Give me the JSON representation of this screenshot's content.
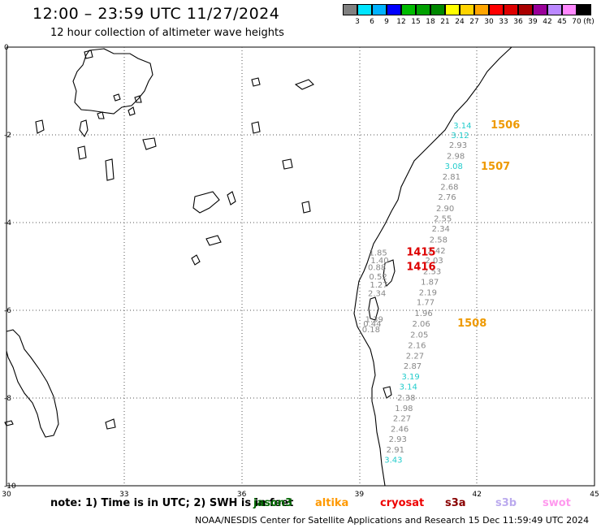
{
  "header": {
    "title": "12:00 – 23:59 UTC 11/27/2024",
    "subtitle": "12 hour collection of altimeter wave heights"
  },
  "color_scale": {
    "unit": "(ft)",
    "colors": [
      "#808080",
      "#00e5ff",
      "#00b2ff",
      "#0000ff",
      "#00bb00",
      "#00a000",
      "#008800",
      "#ffff00",
      "#ffd400",
      "#ffa500",
      "#ff0000",
      "#dd0000",
      "#aa0000",
      "#990099",
      "#bb88ff",
      "#ff88ff",
      "#000000"
    ],
    "labels": [
      "3",
      "6",
      "9",
      "12",
      "15",
      "18",
      "21",
      "24",
      "27",
      "30",
      "33",
      "36",
      "39",
      "42",
      "45",
      "70"
    ]
  },
  "map": {
    "lon_ticks": [
      "30",
      "33",
      "36",
      "39",
      "42",
      "45"
    ],
    "lat_ticks": [
      "0",
      "-2",
      "-4",
      "-6",
      "-8",
      "-10"
    ],
    "lon_range": [
      30,
      45
    ],
    "lat_range": [
      -10,
      0
    ],
    "wave_heights": [
      {
        "lat": -1.85,
        "lon": 41.63,
        "value": "3.14",
        "color": "#22cccc"
      },
      {
        "lat": -2.07,
        "lon": 41.57,
        "value": "3.12",
        "color": "#22cccc"
      },
      {
        "lat": -2.3,
        "lon": 41.52,
        "value": "2.93",
        "color": "#888888"
      },
      {
        "lat": -2.55,
        "lon": 41.46,
        "value": "2.98",
        "color": "#888888"
      },
      {
        "lat": -2.78,
        "lon": 41.41,
        "value": "3.08",
        "color": "#22cccc"
      },
      {
        "lat": -3.02,
        "lon": 41.35,
        "value": "2.81",
        "color": "#888888"
      },
      {
        "lat": -3.25,
        "lon": 41.3,
        "value": "2.68",
        "color": "#888888"
      },
      {
        "lat": -3.48,
        "lon": 41.24,
        "value": "2.76",
        "color": "#888888"
      },
      {
        "lat": -3.74,
        "lon": 41.19,
        "value": "2.90",
        "color": "#888888"
      },
      {
        "lat": -3.97,
        "lon": 41.13,
        "value": "2.55",
        "color": "#888888"
      },
      {
        "lat": -4.2,
        "lon": 41.08,
        "value": "2.34",
        "color": "#888888"
      },
      {
        "lat": -4.45,
        "lon": 41.02,
        "value": "2.58",
        "color": "#888888"
      },
      {
        "lat": -4.7,
        "lon": 40.97,
        "value": "2.42",
        "color": "#888888"
      },
      {
        "lat": -4.93,
        "lon": 40.91,
        "value": "2.03",
        "color": "#888888"
      },
      {
        "lat": -5.18,
        "lon": 40.86,
        "value": "2.53",
        "color": "#888888"
      },
      {
        "lat": -5.42,
        "lon": 40.8,
        "value": "1.87",
        "color": "#888888"
      },
      {
        "lat": -5.66,
        "lon": 40.75,
        "value": "2.19",
        "color": "#888888"
      },
      {
        "lat": -5.88,
        "lon": 40.69,
        "value": "1.77",
        "color": "#888888"
      },
      {
        "lat": -6.13,
        "lon": 40.64,
        "value": "1.96",
        "color": "#888888"
      },
      {
        "lat": -6.37,
        "lon": 40.58,
        "value": "2.06",
        "color": "#888888"
      },
      {
        "lat": -6.62,
        "lon": 40.53,
        "value": "2.05",
        "color": "#888888"
      },
      {
        "lat": -6.86,
        "lon": 40.47,
        "value": "2.16",
        "color": "#888888"
      },
      {
        "lat": -7.1,
        "lon": 40.42,
        "value": "2.27",
        "color": "#888888"
      },
      {
        "lat": -7.33,
        "lon": 40.36,
        "value": "2.87",
        "color": "#888888"
      },
      {
        "lat": -7.57,
        "lon": 40.31,
        "value": "3.19",
        "color": "#22cccc"
      },
      {
        "lat": -7.81,
        "lon": 40.25,
        "value": "3.14",
        "color": "#22cccc"
      },
      {
        "lat": -8.06,
        "lon": 40.2,
        "value": "2.38",
        "color": "#888888"
      },
      {
        "lat": -8.3,
        "lon": 40.14,
        "value": "1.98",
        "color": "#888888"
      },
      {
        "lat": -8.53,
        "lon": 40.09,
        "value": "2.27",
        "color": "#888888"
      },
      {
        "lat": -8.77,
        "lon": 40.03,
        "value": "2.46",
        "color": "#888888"
      },
      {
        "lat": -9.0,
        "lon": 39.98,
        "value": "2.93",
        "color": "#888888"
      },
      {
        "lat": -9.24,
        "lon": 39.92,
        "value": "2.91",
        "color": "#888888"
      },
      {
        "lat": -9.47,
        "lon": 39.87,
        "value": "3.43",
        "color": "#22cccc"
      },
      {
        "lat": -4.75,
        "lon": 39.48,
        "value": "1.85",
        "color": "#888888"
      },
      {
        "lat": -4.93,
        "lon": 39.52,
        "value": "1.40",
        "color": "#888888"
      },
      {
        "lat": -5.08,
        "lon": 39.45,
        "value": "0.88",
        "color": "#888888"
      },
      {
        "lat": -5.3,
        "lon": 39.48,
        "value": "0.52",
        "color": "#888888"
      },
      {
        "lat": -5.48,
        "lon": 39.5,
        "value": "1.27",
        "color": "#888888"
      },
      {
        "lat": -5.68,
        "lon": 39.45,
        "value": "2.34",
        "color": "#888888"
      },
      {
        "lat": -6.27,
        "lon": 39.38,
        "value": "1.39",
        "color": "#888888"
      },
      {
        "lat": -6.37,
        "lon": 39.33,
        "value": "0.44",
        "color": "#888888"
      },
      {
        "lat": -6.5,
        "lon": 39.3,
        "value": "0.18",
        "color": "#888888"
      }
    ],
    "pass_labels": [
      {
        "lat": -1.85,
        "lon": 42.35,
        "text": "1506",
        "color": "#ee9900"
      },
      {
        "lat": -2.8,
        "lon": 42.1,
        "text": "1507",
        "color": "#ee9900"
      },
      {
        "lat": -4.75,
        "lon": 40.2,
        "text": "1415",
        "color": "#dd0000"
      },
      {
        "lat": -5.08,
        "lon": 40.2,
        "text": "1416",
        "color": "#dd0000"
      },
      {
        "lat": -6.37,
        "lon": 41.5,
        "text": "1508",
        "color": "#ee9900"
      }
    ]
  },
  "footer": {
    "note": "note:  1) Time is in UTC; 2) SWH is in feet",
    "legend": [
      {
        "name": "jason3",
        "color": "#006600"
      },
      {
        "name": "altika",
        "color": "#ff9900"
      },
      {
        "name": "cryosat",
        "color": "#ee0000"
      },
      {
        "name": "s3a",
        "color": "#880000"
      },
      {
        "name": "s3b",
        "color": "#bbaaee"
      },
      {
        "name": "swot",
        "color": "#ff99ee"
      }
    ],
    "credit": "NOAA/NESDIS Center for Satellite Applications and Research    15 Dec 11:59:49 UTC 2024"
  }
}
